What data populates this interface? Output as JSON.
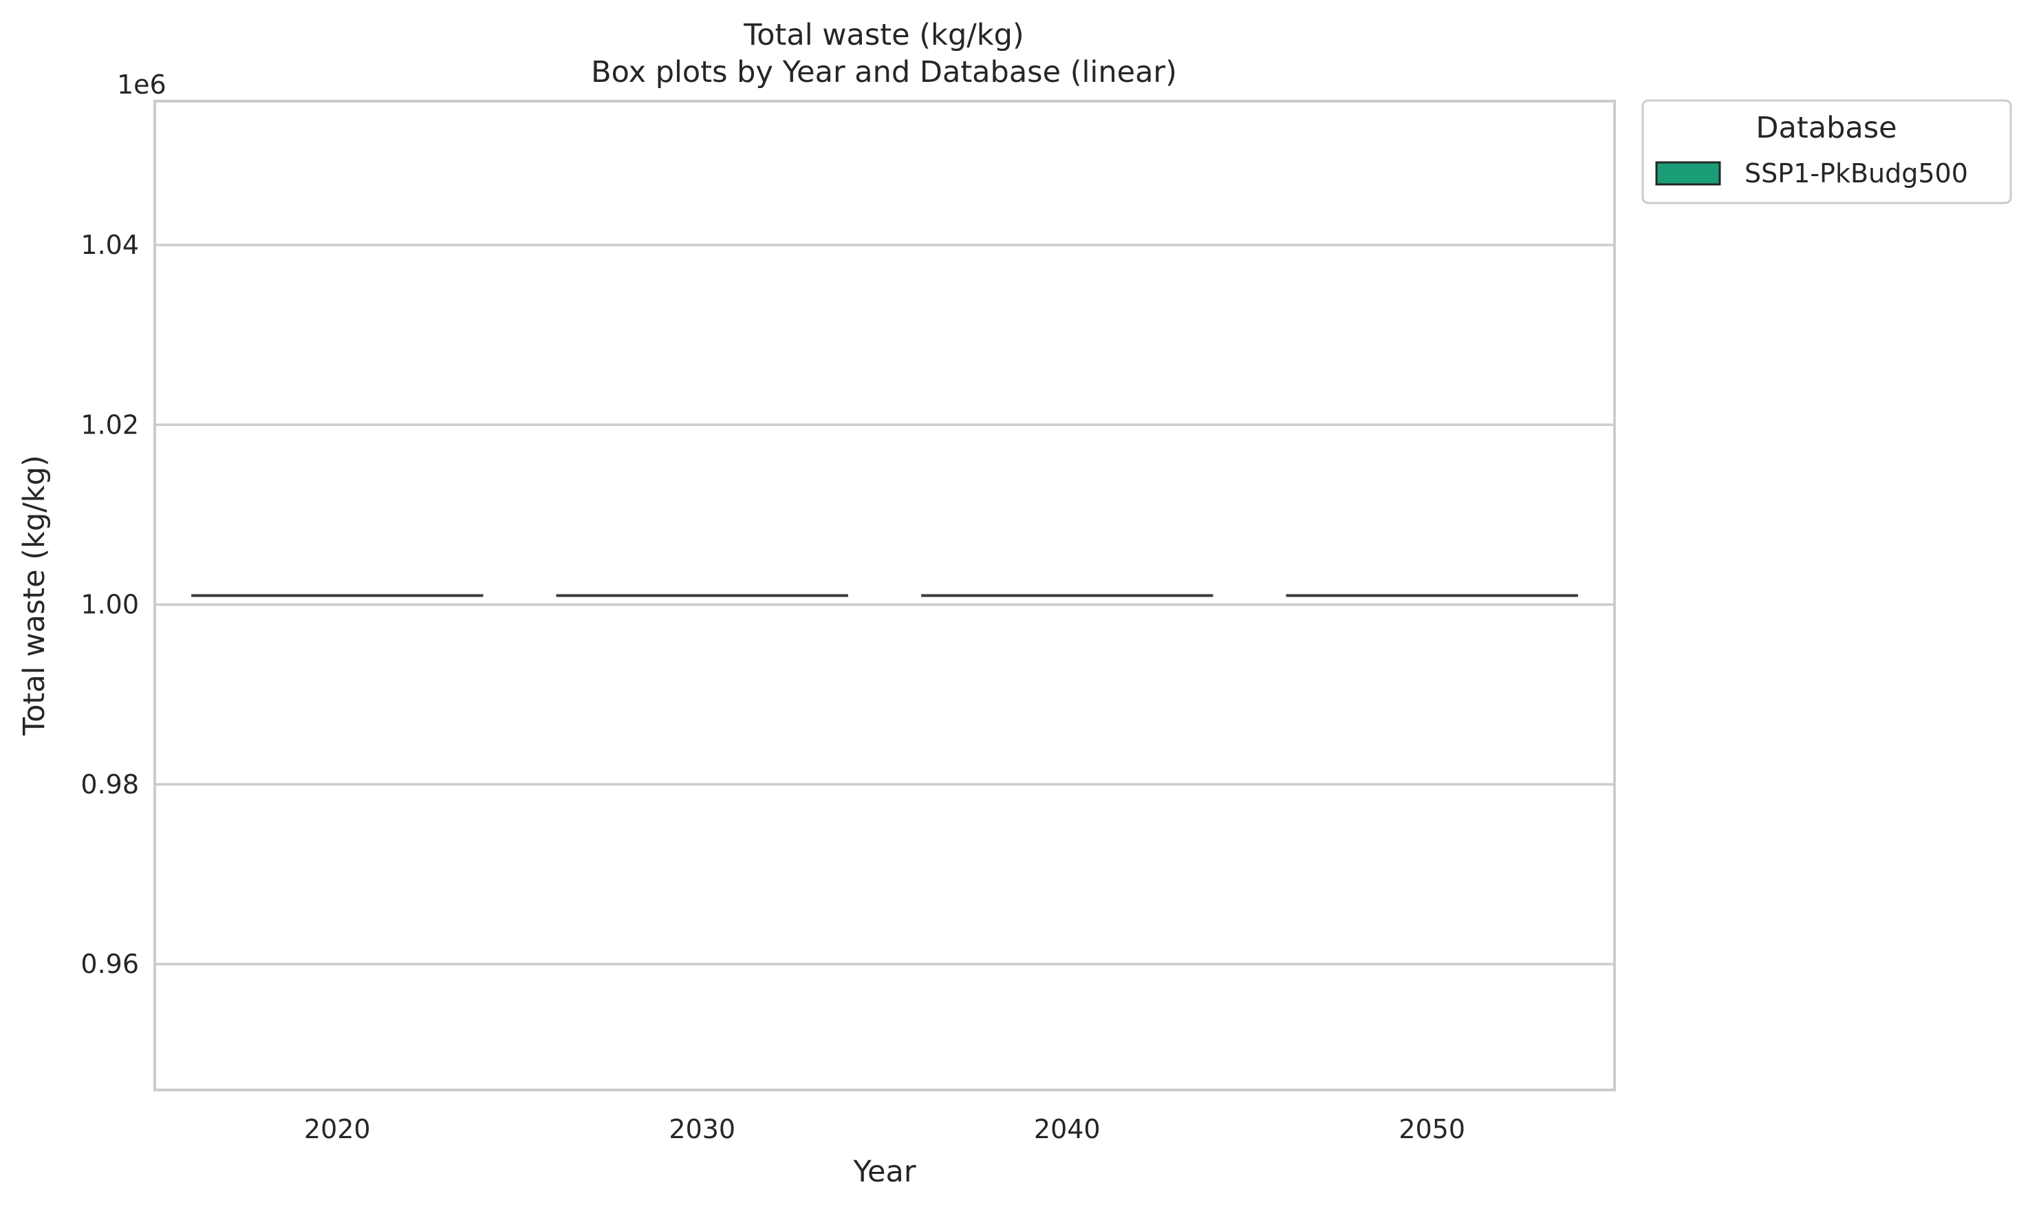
{
  "chart_data": {
    "type": "box",
    "title": "Total waste (kg/kg)",
    "subtitle": "Box plots by Year and Database (linear)",
    "xlabel": "Year",
    "ylabel": "Total waste (kg/kg)",
    "y_offset_label": "1e6",
    "y_scale": "linear",
    "ylim": [
      0.946,
      1.056
    ],
    "yticks": [
      0.96,
      0.98,
      1.0,
      1.02,
      1.04
    ],
    "ytick_labels": [
      "0.96",
      "0.98",
      "1.00",
      "1.02",
      "1.04"
    ],
    "categories": [
      "2020",
      "2030",
      "2040",
      "2050"
    ],
    "grid": "horizontal",
    "legend": {
      "title": "Database",
      "placement": "outside-right",
      "entries": [
        "SSP1-PkBudg500"
      ]
    },
    "series": [
      {
        "name": "SSP1-PkBudg500",
        "color": "#1b9e77",
        "values": [
          1.001,
          1.001,
          1.001,
          1.001
        ]
      }
    ]
  }
}
